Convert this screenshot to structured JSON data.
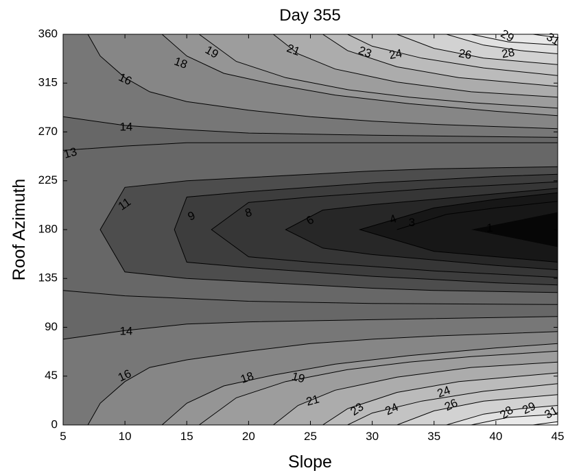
{
  "chart_data": {
    "type": "contour",
    "title": "Day 355",
    "xlabel": "Slope",
    "ylabel": "Roof Azimuth",
    "xlim": [
      5,
      45
    ],
    "ylim": [
      0,
      360
    ],
    "xticks": [
      "5",
      "10",
      "15",
      "20",
      "25",
      "30",
      "35",
      "40",
      "45"
    ],
    "yticks": [
      "0",
      "45",
      "90",
      "135",
      "180",
      "225",
      "270",
      "315",
      "360"
    ],
    "fill": "grayscale",
    "contours": [
      {
        "level": 1,
        "points": [
          [
            38,
            180
          ]
        ]
      },
      {
        "level": 3,
        "points": [
          [
            32,
            180
          ],
          [
            36,
            194
          ],
          [
            40,
            200
          ],
          [
            45,
            206
          ]
        ]
      },
      {
        "level": 4,
        "points": [
          [
            45,
            150
          ],
          [
            40,
            155
          ],
          [
            35,
            160
          ],
          [
            29,
            180
          ],
          [
            35,
            200
          ],
          [
            40,
            208
          ],
          [
            45,
            214
          ]
        ]
      },
      {
        "level": 6,
        "points": [
          [
            45,
            143
          ],
          [
            40,
            147
          ],
          [
            35,
            152
          ],
          [
            30,
            157
          ],
          [
            26,
            163
          ],
          [
            23,
            180
          ],
          [
            26,
            198
          ],
          [
            30,
            203
          ],
          [
            35,
            208
          ],
          [
            40,
            213
          ],
          [
            45,
            218
          ]
        ]
      },
      {
        "level": 8,
        "points": [
          [
            45,
            136
          ],
          [
            40,
            139
          ],
          [
            35,
            142
          ],
          [
            30,
            146
          ],
          [
            25,
            150
          ],
          [
            20,
            155
          ],
          [
            17,
            180
          ],
          [
            20,
            205
          ],
          [
            25,
            210
          ],
          [
            30,
            214
          ],
          [
            35,
            218
          ],
          [
            40,
            221
          ],
          [
            45,
            224
          ]
        ]
      },
      {
        "level": 9,
        "points": [
          [
            45,
            129
          ],
          [
            40,
            131
          ],
          [
            35,
            134
          ],
          [
            30,
            137
          ],
          [
            25,
            141
          ],
          [
            20,
            145
          ],
          [
            15,
            150
          ],
          [
            14,
            180
          ],
          [
            15,
            210
          ],
          [
            20,
            215
          ],
          [
            25,
            219
          ],
          [
            30,
            223
          ],
          [
            35,
            226
          ],
          [
            40,
            229
          ],
          [
            45,
            231
          ]
        ]
      },
      {
        "level": 11,
        "points": [
          [
            45,
            122
          ],
          [
            40,
            123
          ],
          [
            35,
            124
          ],
          [
            30,
            126
          ],
          [
            25,
            129
          ],
          [
            20,
            132
          ],
          [
            15,
            135
          ],
          [
            10,
            141
          ],
          [
            8,
            180
          ],
          [
            10,
            219
          ],
          [
            15,
            225
          ],
          [
            20,
            228
          ],
          [
            25,
            231
          ],
          [
            30,
            234
          ],
          [
            35,
            236
          ],
          [
            40,
            237
          ],
          [
            45,
            238
          ]
        ]
      },
      {
        "level": 13,
        "points": [
          [
            45,
            111
          ],
          [
            30,
            112
          ],
          [
            20,
            114
          ],
          [
            10,
            119
          ],
          [
            5,
            124
          ]
        ]
      },
      {
        "level": 13,
        "points": [
          [
            5,
            253
          ],
          [
            10,
            257
          ],
          [
            15,
            260
          ],
          [
            20,
            260
          ],
          [
            30,
            260
          ],
          [
            45,
            260
          ]
        ]
      },
      {
        "level": 14,
        "points": [
          [
            5,
            79
          ],
          [
            10,
            87
          ],
          [
            15,
            93
          ],
          [
            20,
            95
          ],
          [
            30,
            97
          ],
          [
            45,
            100
          ]
        ]
      },
      {
        "level": 14,
        "points": [
          [
            5,
            284
          ],
          [
            10,
            276
          ],
          [
            15,
            272
          ],
          [
            20,
            269
          ],
          [
            30,
            267
          ],
          [
            45,
            265
          ]
        ]
      },
      {
        "level": 16,
        "points": [
          [
            7,
            0
          ],
          [
            8,
            20
          ],
          [
            10,
            40
          ],
          [
            12,
            53
          ],
          [
            15,
            60
          ],
          [
            20,
            68
          ],
          [
            25,
            75
          ],
          [
            30,
            79
          ],
          [
            35,
            82
          ],
          [
            40,
            84
          ],
          [
            45,
            86
          ]
        ]
      },
      {
        "level": 16,
        "points": [
          [
            7,
            360
          ],
          [
            8,
            340
          ],
          [
            10,
            320
          ],
          [
            12,
            307
          ],
          [
            15,
            298
          ],
          [
            20,
            290
          ],
          [
            25,
            284
          ],
          [
            30,
            280
          ],
          [
            35,
            277
          ],
          [
            40,
            275
          ],
          [
            45,
            273
          ]
        ]
      },
      {
        "level": 18,
        "points": [
          [
            13,
            0
          ],
          [
            15,
            20
          ],
          [
            18,
            36
          ],
          [
            22,
            46
          ],
          [
            27,
            56
          ],
          [
            33,
            64
          ],
          [
            40,
            71
          ],
          [
            45,
            75
          ]
        ]
      },
      {
        "level": 18,
        "points": [
          [
            13,
            360
          ],
          [
            15,
            340
          ],
          [
            18,
            324
          ],
          [
            22,
            314
          ],
          [
            27,
            304
          ],
          [
            33,
            296
          ],
          [
            40,
            289
          ],
          [
            45,
            285
          ]
        ]
      },
      {
        "level": 19,
        "points": [
          [
            16,
            0
          ],
          [
            19,
            25
          ],
          [
            23,
            40
          ],
          [
            28,
            51
          ],
          [
            33,
            58
          ],
          [
            38,
            63
          ],
          [
            45,
            68
          ]
        ]
      },
      {
        "level": 19,
        "points": [
          [
            16,
            360
          ],
          [
            19,
            335
          ],
          [
            23,
            320
          ],
          [
            28,
            309
          ],
          [
            33,
            302
          ],
          [
            38,
            297
          ],
          [
            45,
            292
          ]
        ]
      },
      {
        "level": 21,
        "points": [
          [
            22,
            0
          ],
          [
            24,
            18
          ],
          [
            27,
            32
          ],
          [
            32,
            44
          ],
          [
            38,
            53
          ],
          [
            45,
            58
          ]
        ]
      },
      {
        "level": 21,
        "points": [
          [
            22,
            360
          ],
          [
            24,
            342
          ],
          [
            27,
            328
          ],
          [
            32,
            316
          ],
          [
            38,
            307
          ],
          [
            45,
            302
          ]
        ]
      },
      {
        "level": 23,
        "points": [
          [
            26,
            0
          ],
          [
            28,
            15
          ],
          [
            32,
            30
          ],
          [
            37,
            40
          ],
          [
            45,
            48
          ]
        ]
      },
      {
        "level": 23,
        "points": [
          [
            26,
            360
          ],
          [
            28,
            345
          ],
          [
            32,
            330
          ],
          [
            37,
            320
          ],
          [
            45,
            312
          ]
        ]
      },
      {
        "level": 24,
        "points": [
          [
            28,
            0
          ],
          [
            30,
            11
          ],
          [
            34,
            22
          ],
          [
            39,
            31
          ],
          [
            45,
            38
          ]
        ]
      },
      {
        "level": 24,
        "points": [
          [
            28,
            360
          ],
          [
            30,
            349
          ],
          [
            34,
            338
          ],
          [
            39,
            329
          ],
          [
            45,
            322
          ]
        ]
      },
      {
        "level": 26,
        "points": [
          [
            32,
            0
          ],
          [
            35,
            13
          ],
          [
            39,
            22
          ],
          [
            45,
            28
          ]
        ]
      },
      {
        "level": 26,
        "points": [
          [
            32,
            360
          ],
          [
            35,
            347
          ],
          [
            39,
            338
          ],
          [
            45,
            332
          ]
        ]
      },
      {
        "level": 28,
        "points": [
          [
            36,
            0
          ],
          [
            39,
            10
          ],
          [
            42,
            15
          ],
          [
            45,
            18
          ]
        ]
      },
      {
        "level": 28,
        "points": [
          [
            36,
            360
          ],
          [
            39,
            350
          ],
          [
            42,
            345
          ],
          [
            45,
            342
          ]
        ]
      },
      {
        "level": 29,
        "points": [
          [
            38,
            0
          ],
          [
            41,
            7
          ],
          [
            45,
            10
          ]
        ]
      },
      {
        "level": 29,
        "points": [
          [
            38,
            360
          ],
          [
            41,
            353
          ],
          [
            45,
            350
          ]
        ]
      },
      {
        "level": 31,
        "points": [
          [
            43,
            0
          ],
          [
            45,
            3
          ]
        ]
      },
      {
        "level": 31,
        "points": [
          [
            43,
            360
          ],
          [
            45,
            357
          ]
        ]
      }
    ],
    "contour_labels": [
      {
        "text": "1",
        "x": 39.5,
        "y": 181,
        "angle": 0
      },
      {
        "text": "3",
        "x": 33.2,
        "y": 186,
        "angle": 0
      },
      {
        "text": "4",
        "x": 31.7,
        "y": 189,
        "angle": -20
      },
      {
        "text": "6",
        "x": 25.0,
        "y": 188,
        "angle": -30
      },
      {
        "text": "8",
        "x": 20.0,
        "y": 195,
        "angle": -15
      },
      {
        "text": "9",
        "x": 15.4,
        "y": 192,
        "angle": -25
      },
      {
        "text": "11",
        "x": 10.0,
        "y": 203,
        "angle": -35
      },
      {
        "text": "13",
        "x": 5.6,
        "y": 250,
        "angle": -15
      },
      {
        "text": "14",
        "x": 10.1,
        "y": 274,
        "angle": 0
      },
      {
        "text": "14",
        "x": 10.1,
        "y": 86,
        "angle": 0
      },
      {
        "text": "16",
        "x": 10.0,
        "y": 318,
        "angle": 25
      },
      {
        "text": "16",
        "x": 10.0,
        "y": 45,
        "angle": -25
      },
      {
        "text": "18",
        "x": 14.5,
        "y": 333,
        "angle": 20
      },
      {
        "text": "18",
        "x": 19.9,
        "y": 43,
        "angle": -20
      },
      {
        "text": "19",
        "x": 17.0,
        "y": 343,
        "angle": 30
      },
      {
        "text": "19",
        "x": 24.0,
        "y": 43,
        "angle": 15
      },
      {
        "text": "21",
        "x": 23.6,
        "y": 345,
        "angle": 20
      },
      {
        "text": "21",
        "x": 25.2,
        "y": 22,
        "angle": -15
      },
      {
        "text": "23",
        "x": 29.4,
        "y": 343,
        "angle": 20
      },
      {
        "text": "23",
        "x": 28.8,
        "y": 14,
        "angle": -35
      },
      {
        "text": "24",
        "x": 31.9,
        "y": 341,
        "angle": -10
      },
      {
        "text": "24",
        "x": 31.6,
        "y": 14,
        "angle": -25
      },
      {
        "text": "24",
        "x": 35.8,
        "y": 30,
        "angle": -20
      },
      {
        "text": "26",
        "x": 37.5,
        "y": 341,
        "angle": 10
      },
      {
        "text": "26",
        "x": 36.4,
        "y": 18,
        "angle": -25
      },
      {
        "text": "28",
        "x": 41.0,
        "y": 342,
        "angle": -10
      },
      {
        "text": "28",
        "x": 40.9,
        "y": 11,
        "angle": -35
      },
      {
        "text": "29",
        "x": 40.9,
        "y": 358,
        "angle": 30
      },
      {
        "text": "29",
        "x": 42.7,
        "y": 15,
        "angle": -25
      },
      {
        "text": "31",
        "x": 44.6,
        "y": 355,
        "angle": 30
      },
      {
        "text": "31",
        "x": 44.5,
        "y": 11,
        "angle": -30
      }
    ]
  }
}
